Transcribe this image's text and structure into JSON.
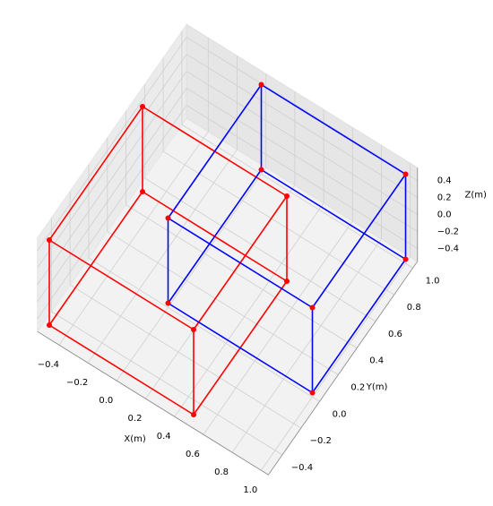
{
  "chart_data": {
    "type": "wireframe3d",
    "xlabel": "X(m)",
    "ylabel": "Y(m)",
    "zlabel": "Z(m)",
    "xlim": [
      -0.55,
      1.05
    ],
    "ylim": [
      -0.55,
      1.05
    ],
    "zlim": [
      -0.55,
      0.55
    ],
    "xticks": [
      {
        "value": -0.4,
        "label": "−0.4"
      },
      {
        "value": -0.2,
        "label": "−0.2"
      },
      {
        "value": 0,
        "label": "0.0"
      },
      0.2,
      0.4,
      0.6,
      0.8,
      {
        "value": 1,
        "label": "1.0"
      }
    ],
    "yticks": [
      {
        "value": -0.4,
        "label": "−0.4"
      },
      {
        "value": -0.2,
        "label": "−0.2"
      },
      {
        "value": 0,
        "label": "0.0"
      },
      0.2,
      0.4,
      0.6,
      0.8,
      {
        "value": 1,
        "label": "1.0"
      }
    ],
    "zticks": [
      {
        "value": -0.4,
        "label": "−0.4"
      },
      {
        "value": -0.2,
        "label": "−0.2"
      },
      {
        "value": 0,
        "label": "0.0"
      },
      0.2,
      0.4
    ],
    "grid": true,
    "series": [
      {
        "color": "#ff0000",
        "x": [
          -0.5,
          0.5,
          0.5,
          -0.5,
          -0.5,
          0.5,
          0.5,
          -0.5
        ],
        "y": [
          -0.5,
          -0.5,
          0.5,
          0.5,
          -0.5,
          -0.5,
          0.5,
          0.5
        ],
        "z": [
          -0.5,
          -0.5,
          -0.5,
          -0.5,
          0.5,
          0.5,
          0.5,
          0.5
        ]
      },
      {
        "color": "#0000ff",
        "x": [
          0,
          1,
          1,
          0,
          0,
          1,
          1,
          0
        ],
        "y": [
          0,
          0,
          1,
          1,
          0,
          0,
          1,
          1
        ],
        "z": [
          -0.5,
          -0.5,
          -0.5,
          -0.5,
          0.5,
          0.5,
          0.5,
          0.5
        ]
      }
    ]
  }
}
